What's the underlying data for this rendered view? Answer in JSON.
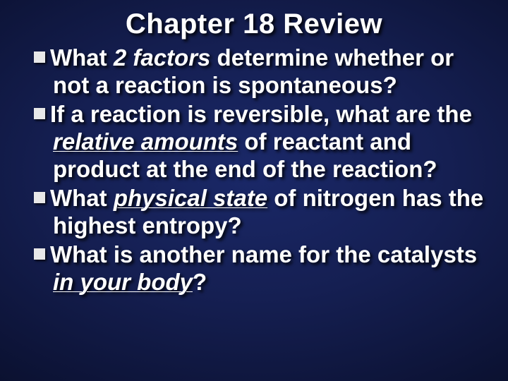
{
  "title": "Chapter 18 Review",
  "bullets": [
    {
      "pre": "What ",
      "em": "2 factors",
      "post": " determine whether or not a reaction is spontaneous?",
      "emClass": "it"
    },
    {
      "pre": "If a reaction is reversible, what are the ",
      "em": "relative amounts",
      "post": " of reactant and product at the end of the reaction?",
      "emClass": "ul-it"
    },
    {
      "pre": "What ",
      "em": "physical state",
      "post": " of nitrogen has the highest entropy?",
      "emClass": "ul-it"
    },
    {
      "pre": "What is another name for the catalysts ",
      "em": "in your body",
      "post": "?",
      "emClass": "ul-it"
    }
  ],
  "colors": {
    "text": "#ffffff",
    "bullet_square": "#e8e8e8",
    "bg_center": "#1a2868",
    "bg_outer": "#050818"
  },
  "typography": {
    "title_fontsize": 40,
    "body_fontsize": 33,
    "font_family": "Arial"
  }
}
